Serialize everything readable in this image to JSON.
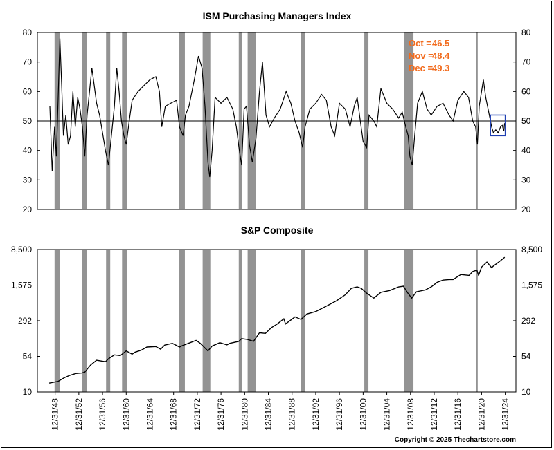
{
  "chart_data": [
    {
      "type": "line",
      "title": "ISM Purchasing Managers Index",
      "ylim": [
        20,
        80
      ],
      "yticks": [
        "20",
        "30",
        "40",
        "50",
        "60",
        "70",
        "80"
      ],
      "reference_line": 50,
      "annotations": [
        {
          "label": "Oct =",
          "value": "46.5"
        },
        {
          "label": "Nov =",
          "value": "48.4"
        },
        {
          "label": "Dec =",
          "value": "49.3"
        }
      ],
      "highlight_box": {
        "x_range": [
          2022.5,
          2025.0
        ],
        "y_range": [
          45,
          52
        ]
      },
      "series": [
        {
          "x": [
            1948.1,
            1948.5,
            1948.9,
            1949.2,
            1949.5,
            1949.8,
            1950.1,
            1950.4,
            1950.8,
            1951.2,
            1951.6,
            1952.0,
            1952.4,
            1952.8,
            1953.2,
            1953.6,
            1954.0,
            1954.4,
            1954.8,
            1955.2,
            1955.6,
            1956.0,
            1956.5,
            1957.0,
            1957.5,
            1958.0,
            1958.5,
            1959.0,
            1959.4,
            1959.8,
            1960.2,
            1960.6,
            1961.0,
            1961.5,
            1962.0,
            1963.0,
            1964.0,
            1965.0,
            1966.0,
            1966.6,
            1967.0,
            1967.6,
            1968.5,
            1969.5,
            1970.0,
            1970.6,
            1971.0,
            1971.6,
            1972.5,
            1973.2,
            1973.8,
            1974.3,
            1974.8,
            1975.1,
            1975.5,
            1976.0,
            1977.0,
            1978.0,
            1979.0,
            1979.6,
            1980.1,
            1980.5,
            1980.9,
            1981.3,
            1981.8,
            1982.3,
            1982.9,
            1983.5,
            1984.0,
            1984.6,
            1985.2,
            1986.0,
            1987.0,
            1988.0,
            1988.8,
            1989.5,
            1990.2,
            1990.8,
            1991.2,
            1992.0,
            1993.0,
            1994.0,
            1994.8,
            1995.6,
            1996.2,
            1997.0,
            1998.0,
            1998.8,
            1999.5,
            2000.0,
            2000.6,
            2001.0,
            2001.6,
            2002.0,
            2002.8,
            2003.3,
            2004.0,
            2005.0,
            2006.0,
            2007.0,
            2007.6,
            2008.2,
            2008.6,
            2008.9,
            2009.3,
            2009.7,
            2010.2,
            2011.0,
            2011.8,
            2012.5,
            2013.5,
            2014.5,
            2015.5,
            2016.2,
            2017.0,
            2018.0,
            2018.8,
            2019.5,
            2020.0,
            2020.3,
            2020.6,
            2021.0,
            2021.3,
            2021.7,
            2022.2,
            2022.7,
            2023.0,
            2023.4,
            2023.8,
            2024.2,
            2024.5,
            2024.75,
            2024.83,
            2024.92
          ],
          "y": [
            55,
            33,
            48,
            38,
            57,
            78,
            62,
            45,
            52,
            42,
            45,
            60,
            48,
            58,
            54,
            48,
            38,
            52,
            60,
            68,
            62,
            56,
            52,
            46,
            40,
            35,
            45,
            55,
            68,
            60,
            50,
            45,
            42,
            50,
            57,
            60,
            62,
            64,
            65,
            60,
            48,
            55,
            56,
            57,
            48,
            45,
            52,
            55,
            64,
            72,
            68,
            55,
            36,
            31,
            40,
            58,
            56,
            58,
            54,
            48,
            40,
            35,
            54,
            55,
            42,
            36,
            44,
            60,
            70,
            52,
            48,
            51,
            54,
            60,
            56,
            50,
            46,
            41,
            48,
            54,
            56,
            59,
            57,
            48,
            45,
            56,
            54,
            48,
            55,
            58,
            49,
            43,
            41,
            52,
            50,
            48,
            61,
            56,
            54,
            51,
            53,
            48,
            45,
            38,
            35,
            45,
            56,
            60,
            54,
            52,
            55,
            56,
            52,
            50,
            57,
            60,
            58,
            50,
            48,
            42,
            55,
            60,
            64,
            58,
            53,
            48,
            46,
            47,
            46,
            48,
            48.5,
            46.5,
            48.4,
            49.3
          ]
        }
      ]
    },
    {
      "type": "line",
      "title": "S&P Composite",
      "yscale": "log",
      "ylim": [
        10,
        8500
      ],
      "yticks": [
        "10",
        "54",
        "292",
        "1,575",
        "8,500"
      ],
      "series": [
        {
          "x": [
            1948.0,
            1949.5,
            1950.5,
            1951.5,
            1952.5,
            1953.5,
            1954.0,
            1955.0,
            1956.0,
            1957.5,
            1958.0,
            1959.0,
            1960.0,
            1961.0,
            1962.0,
            1962.5,
            1963.5,
            1964.5,
            1966.0,
            1966.8,
            1967.5,
            1968.8,
            1970.0,
            1970.5,
            1971.5,
            1972.8,
            1973.5,
            1974.8,
            1975.5,
            1976.8,
            1978.0,
            1978.5,
            1980.0,
            1980.5,
            1981.5,
            1982.5,
            1983.5,
            1984.5,
            1985.5,
            1986.5,
            1987.6,
            1987.9,
            1989.5,
            1990.5,
            1991.5,
            1993.0,
            1995.0,
            1996.5,
            1998.0,
            1999.0,
            2000.0,
            2000.7,
            2001.5,
            2002.8,
            2004.0,
            2005.5,
            2007.0,
            2007.8,
            2008.5,
            2009.2,
            2010.0,
            2011.5,
            2012.5,
            2013.5,
            2014.5,
            2015.5,
            2016.2,
            2017.5,
            2018.9,
            2019.5,
            2020.2,
            2020.5,
            2021.0,
            2021.9,
            2022.7,
            2023.0,
            2024.0,
            2024.9
          ],
          "y": [
            15.2,
            16.5,
            19.5,
            22,
            24,
            24.5,
            25.5,
            36,
            45,
            42,
            48,
            58,
            56,
            70,
            60,
            66,
            72,
            84,
            86,
            76,
            92,
            100,
            84,
            90,
            100,
            115,
            100,
            70,
            88,
            103,
            93,
            100,
            110,
            125,
            120,
            110,
            165,
            160,
            210,
            250,
            320,
            250,
            350,
            310,
            400,
            450,
            600,
            750,
            1000,
            1350,
            1450,
            1350,
            1100,
            850,
            1120,
            1220,
            1450,
            1500,
            1100,
            850,
            1150,
            1250,
            1450,
            1800,
            2000,
            2050,
            2050,
            2600,
            2500,
            3000,
            3200,
            2500,
            3700,
            4700,
            3600,
            3900,
            4800,
            5900
          ]
        }
      ]
    }
  ],
  "x_ticks": [
    "12/31/48",
    "12/31/52",
    "12/31/56",
    "12/31/60",
    "12/31/64",
    "12/31/68",
    "12/31/72",
    "12/31/76",
    "12/31/80",
    "12/31/84",
    "12/31/88",
    "12/31/92",
    "12/31/96",
    "12/31/00",
    "12/31/04",
    "12/31/08",
    "12/31/12",
    "12/31/16",
    "12/31/20",
    "12/31/24"
  ],
  "recessions": [
    [
      1948.9,
      1949.8
    ],
    [
      1953.5,
      1954.4
    ],
    [
      1957.6,
      1958.3
    ],
    [
      1960.3,
      1961.1
    ],
    [
      1969.9,
      1970.9
    ],
    [
      1973.9,
      1975.2
    ],
    [
      1980.0,
      1980.5
    ],
    [
      1981.5,
      1982.9
    ],
    [
      1990.5,
      1991.2
    ],
    [
      2001.2,
      2001.9
    ],
    [
      2007.9,
      2009.5
    ],
    [
      2020.1,
      2020.35
    ]
  ],
  "recession_color": "#939393",
  "annotation_color": "#F26B1D",
  "box_color": "#1F3FB2",
  "copyright": "Copyright © 2025 Thechartstore.com"
}
